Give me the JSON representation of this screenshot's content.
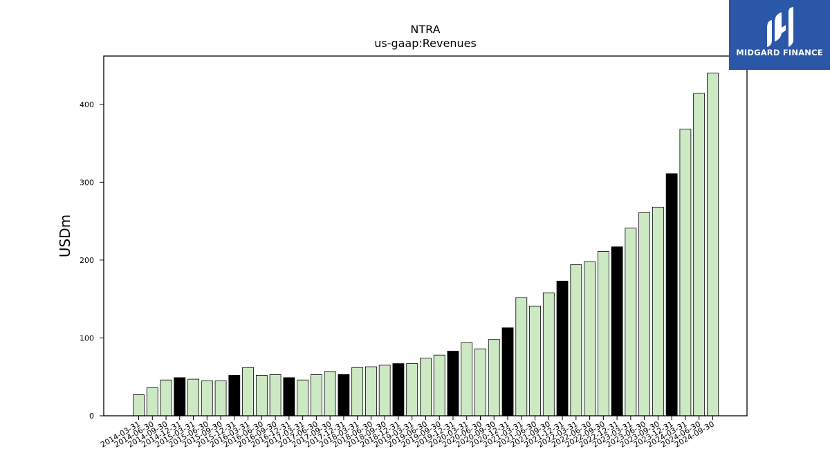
{
  "chart_data": {
    "type": "bar",
    "title": "NTRA",
    "subtitle": "us-gaap:Revenues",
    "ylabel": "USDm",
    "xlabel": "",
    "ylim": [
      0,
      462
    ],
    "yticks": [
      0,
      100,
      200,
      300,
      400
    ],
    "grid": false,
    "colors": {
      "quarter": "#cce9c4",
      "fiscal_year_end": "#000000",
      "edge": "#000000"
    },
    "categories": [
      "2014-03-31",
      "2014-06-30",
      "2014-09-30",
      "2014-12-31",
      "2015-03-31",
      "2015-06-30",
      "2015-09-30",
      "2015-12-31",
      "2016-03-31",
      "2016-06-30",
      "2016-09-30",
      "2016-12-31",
      "2017-03-31",
      "2017-06-30",
      "2017-09-30",
      "2017-12-31",
      "2018-03-31",
      "2018-06-30",
      "2018-09-30",
      "2018-12-31",
      "2019-03-31",
      "2019-06-30",
      "2019-09-30",
      "2019-12-31",
      "2020-03-31",
      "2020-06-30",
      "2020-09-30",
      "2020-12-31",
      "2021-03-31",
      "2021-06-30",
      "2021-09-30",
      "2021-12-31",
      "2022-03-31",
      "2022-06-30",
      "2022-09-30",
      "2022-12-31",
      "2023-03-31",
      "2023-06-30",
      "2023-09-30",
      "2023-12-31",
      "2024-03-31",
      "2024-06-30",
      "2024-09-30"
    ],
    "values": [
      27,
      36,
      46,
      49,
      47,
      45,
      45,
      52,
      62,
      52,
      53,
      49,
      46,
      53,
      57,
      53,
      62,
      63,
      65,
      67,
      67,
      74,
      78,
      83,
      94,
      86,
      98,
      113,
      152,
      141,
      158,
      173,
      194,
      198,
      211,
      217,
      241,
      261,
      268,
      311,
      368,
      414,
      440
    ],
    "highlight": [
      false,
      false,
      false,
      true,
      false,
      false,
      false,
      true,
      false,
      false,
      false,
      true,
      false,
      false,
      false,
      true,
      false,
      false,
      false,
      true,
      false,
      false,
      false,
      true,
      false,
      false,
      false,
      true,
      false,
      false,
      false,
      true,
      false,
      false,
      false,
      true,
      false,
      false,
      false,
      true,
      false,
      false,
      false
    ]
  },
  "logo": {
    "text": "MIDGARD FINANCE",
    "color": "#2b57a8"
  }
}
